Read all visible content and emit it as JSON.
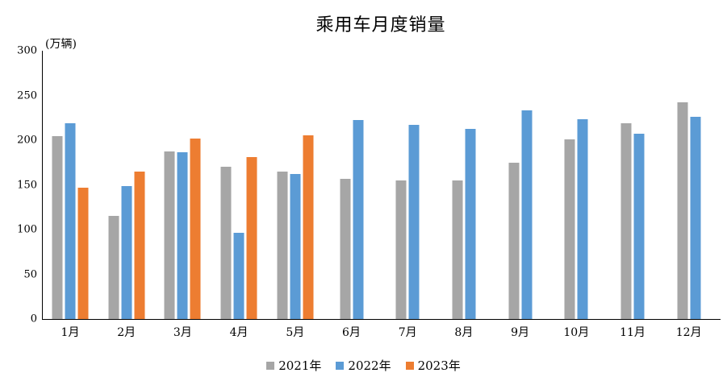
{
  "chart_data": {
    "type": "bar",
    "title": "乘用车月度销量",
    "unit_label": "(万辆)",
    "xlabel": "",
    "ylabel": "万辆",
    "categories": [
      "1月",
      "2月",
      "3月",
      "4月",
      "5月",
      "6月",
      "7月",
      "8月",
      "9月",
      "10月",
      "11月",
      "12月"
    ],
    "series": [
      {
        "name": "2021年",
        "color": "#A6A6A6",
        "values": [
          204.5,
          115.6,
          187.4,
          170.4,
          164.6,
          156.9,
          155.1,
          155.2,
          175.1,
          200.7,
          219.2,
          242.2
        ]
      },
      {
        "name": "2022年",
        "color": "#5B9BD5",
        "values": [
          218.6,
          148.7,
          186.4,
          96.5,
          162.3,
          222.2,
          217.4,
          212.5,
          233.2,
          223.1,
          207.5,
          226.3
        ]
      },
      {
        "name": "2023年",
        "color": "#ED7D31",
        "values": [
          146.9,
          165.3,
          201.7,
          181.1,
          205.1,
          null,
          null,
          null,
          null,
          null,
          null,
          null
        ]
      }
    ],
    "y_ticks": [
      0,
      50,
      100,
      150,
      200,
      250,
      300
    ],
    "ylim": [
      0,
      300
    ],
    "grid": false,
    "legend_position": "bottom",
    "axis_color": "#000000"
  }
}
